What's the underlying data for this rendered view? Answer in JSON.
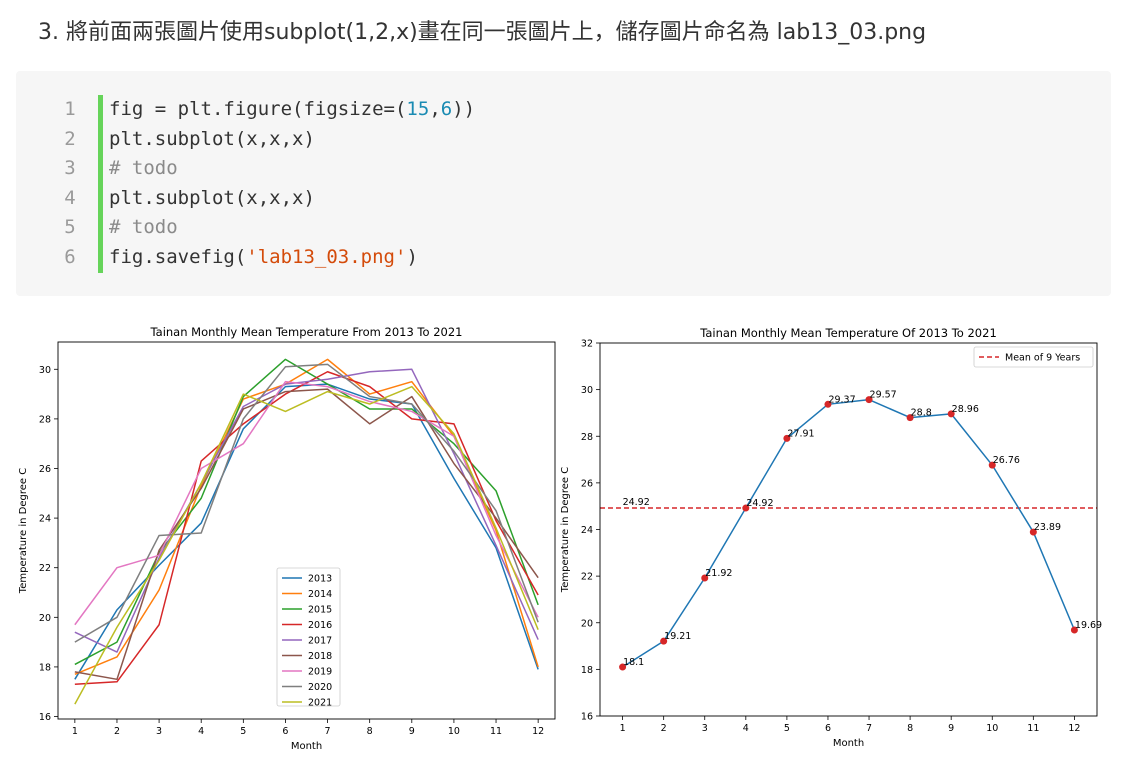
{
  "heading": "3. 將前面兩張圖片使用subplot(1,2,x)畫在同一張圖片上，儲存圖片命名為 lab13_03.png",
  "code": {
    "lines": [
      {
        "num": "1",
        "tokens": [
          {
            "t": "fig = plt.figure(figsize=(",
            "c": ""
          },
          {
            "t": "15",
            "c": "num"
          },
          {
            "t": ",",
            "c": ""
          },
          {
            "t": "6",
            "c": "num"
          },
          {
            "t": "))",
            "c": ""
          }
        ]
      },
      {
        "num": "2",
        "tokens": [
          {
            "t": "plt.subplot(x,x,x)",
            "c": ""
          }
        ]
      },
      {
        "num": "3",
        "tokens": [
          {
            "t": "# todo",
            "c": "com"
          }
        ]
      },
      {
        "num": "4",
        "tokens": [
          {
            "t": "plt.subplot(x,x,x)",
            "c": ""
          }
        ]
      },
      {
        "num": "5",
        "tokens": [
          {
            "t": "# todo",
            "c": "com"
          }
        ]
      },
      {
        "num": "6",
        "tokens": [
          {
            "t": "fig.savefig(",
            "c": ""
          },
          {
            "t": "'lab13_03.png'",
            "c": "str"
          },
          {
            "t": ")",
            "c": ""
          }
        ]
      }
    ]
  },
  "chart_data": [
    {
      "type": "line",
      "title": "Tainan Monthly Mean Temperature From 2013 To 2021",
      "xlabel": "Month",
      "ylabel": "Temperature in Degree C",
      "x": [
        1,
        2,
        3,
        4,
        5,
        6,
        7,
        8,
        9,
        10,
        11,
        12
      ],
      "xlim": [
        0.6,
        12.4
      ],
      "ylim": [
        15.9,
        31.1
      ],
      "yticks": [
        16,
        18,
        20,
        22,
        24,
        26,
        28,
        30
      ],
      "grid": false,
      "legend": "lower-center",
      "series": [
        {
          "name": "2013",
          "color": "#1f77b4",
          "values": [
            17.5,
            20.3,
            22.1,
            23.8,
            27.6,
            29.3,
            29.4,
            28.8,
            28.6,
            25.6,
            22.8,
            17.9
          ]
        },
        {
          "name": "2014",
          "color": "#ff7f0e",
          "values": [
            17.7,
            18.4,
            21.1,
            25.3,
            28.8,
            29.4,
            30.4,
            29.0,
            29.5,
            27.3,
            23.5,
            18.0
          ]
        },
        {
          "name": "2015",
          "color": "#2ca02c",
          "values": [
            18.1,
            19.0,
            22.6,
            24.8,
            28.9,
            30.4,
            29.4,
            28.4,
            28.4,
            27.0,
            25.1,
            20.5
          ]
        },
        {
          "name": "2016",
          "color": "#d62728",
          "values": [
            17.3,
            17.4,
            19.7,
            26.3,
            27.8,
            29.0,
            29.9,
            29.3,
            28.0,
            27.8,
            23.9,
            20.9
          ]
        },
        {
          "name": "2017",
          "color": "#9467bd",
          "values": [
            19.4,
            18.6,
            22.4,
            25.4,
            28.5,
            29.4,
            29.6,
            29.9,
            30.0,
            26.6,
            22.9,
            19.1
          ]
        },
        {
          "name": "2018",
          "color": "#8c564b",
          "values": [
            17.8,
            17.5,
            22.7,
            25.2,
            28.4,
            29.1,
            29.2,
            27.8,
            28.9,
            26.2,
            24.0,
            21.6
          ]
        },
        {
          "name": "2019",
          "color": "#e377c2",
          "values": [
            19.7,
            22.0,
            22.5,
            26.0,
            27.0,
            29.5,
            29.3,
            28.7,
            28.3,
            27.3,
            23.3,
            20.0
          ]
        },
        {
          "name": "2020",
          "color": "#7f7f7f",
          "values": [
            19.0,
            20.0,
            23.3,
            23.4,
            28.0,
            30.1,
            30.2,
            28.9,
            28.6,
            26.7,
            24.3,
            19.8
          ]
        },
        {
          "name": "2021",
          "color": "#bcbd22",
          "values": [
            16.5,
            19.6,
            22.3,
            25.4,
            29.0,
            28.3,
            29.1,
            28.6,
            29.3,
            27.4,
            23.6,
            19.5
          ]
        }
      ]
    },
    {
      "type": "line",
      "title": "Tainan Monthly Mean Temperature Of 2013 To 2021",
      "xlabel": "Month",
      "ylabel": "Temperature in Degree C",
      "x": [
        1,
        2,
        3,
        4,
        5,
        6,
        7,
        8,
        9,
        10,
        11,
        12
      ],
      "xlim": [
        0.45,
        12.55
      ],
      "ylim": [
        16,
        32
      ],
      "yticks": [
        16,
        18,
        20,
        22,
        24,
        26,
        28,
        30,
        32
      ],
      "grid": false,
      "legend": "top-right",
      "series": [
        {
          "color": "#1f77b4",
          "marker_color": "#d62728",
          "values": [
            18.1,
            19.21,
            21.92,
            24.92,
            27.91,
            29.37,
            29.57,
            28.8,
            28.96,
            26.76,
            23.89,
            19.69
          ],
          "labels": [
            "18.1",
            "19.21",
            "21.92",
            "24.92",
            "27.91",
            "29.37",
            "29.57",
            "28.8",
            "28.96",
            "26.76",
            "23.89",
            "19.69"
          ]
        }
      ],
      "hline": {
        "name": "Mean of 9 Years",
        "value": 24.92,
        "label": "24.92",
        "color": "#d62728"
      }
    }
  ]
}
